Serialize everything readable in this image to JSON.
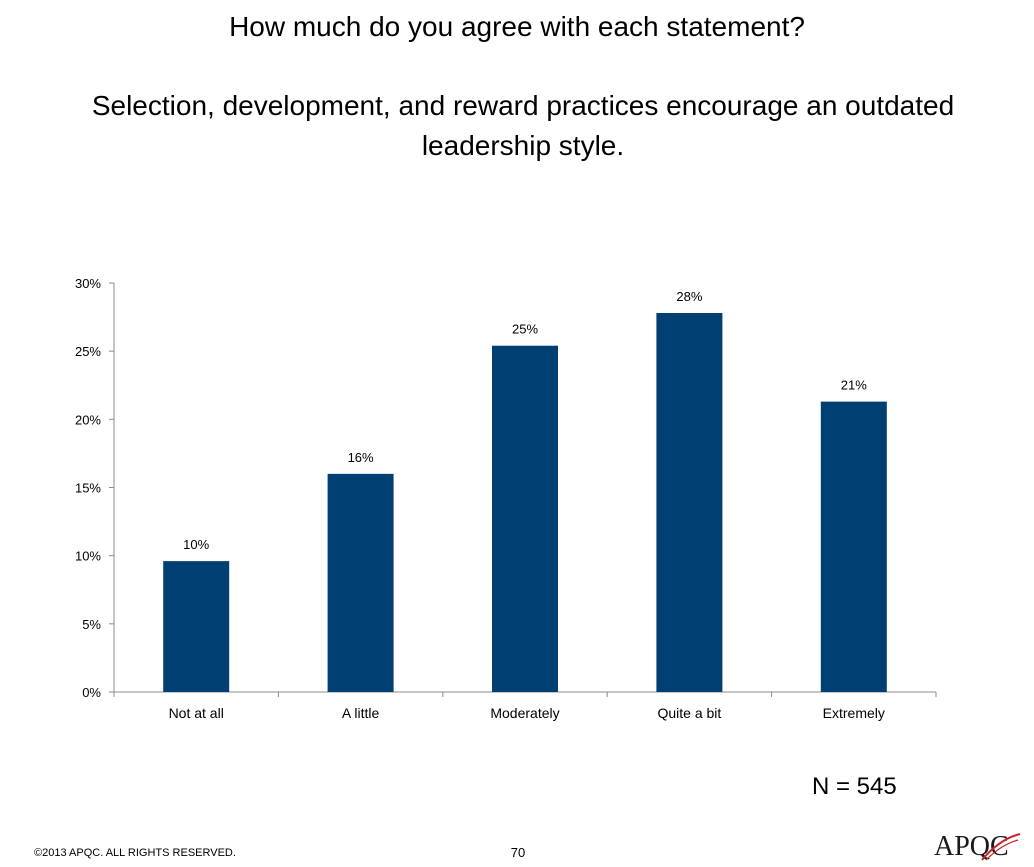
{
  "header": {
    "question": "How much do you agree with each statement?",
    "statement": "Selection, development, and reward practices encourage an outdated leadership style."
  },
  "chart_data": {
    "type": "bar",
    "categories": [
      "Not at all",
      "A little",
      "Moderately",
      "Quite a bit",
      "Extremely"
    ],
    "values": [
      9.6,
      16.0,
      25.4,
      27.8,
      21.3
    ],
    "value_labels": [
      "10%",
      "16%",
      "25%",
      "28%",
      "21%"
    ],
    "yticks": [
      "0%",
      "5%",
      "10%",
      "15%",
      "20%",
      "25%",
      "30%"
    ],
    "ylim": [
      0,
      30
    ],
    "bar_color": "#003f72",
    "grid": false,
    "legend": "none"
  },
  "sample": {
    "label": "N = 545"
  },
  "footer": {
    "copyright": "©2013 APQC.  ALL RIGHTS RESERVED.",
    "page": "70",
    "logo_text": "APQC"
  }
}
